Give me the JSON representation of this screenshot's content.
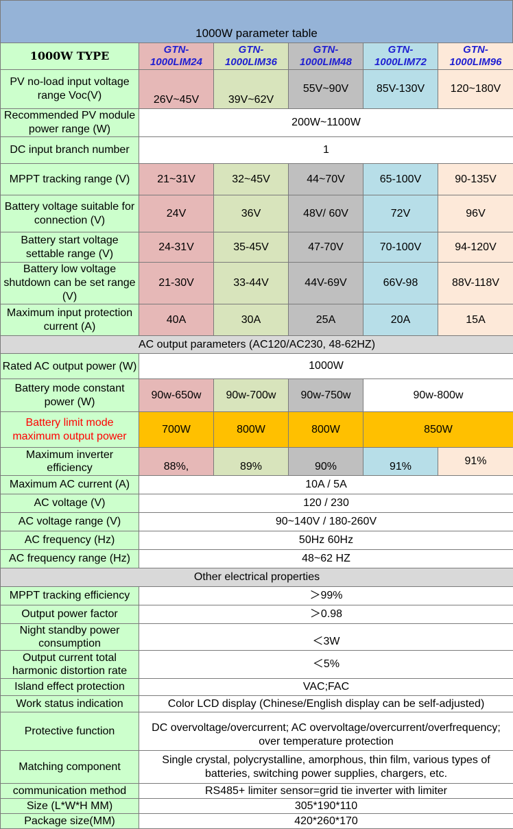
{
  "title": "1000W parameter table",
  "header": {
    "type_label": "1000W  TYPE",
    "models": [
      "GTN-1000LIM24",
      "GTN-1000LIM36",
      "GTN-1000LIM48",
      "GTN-1000LIM72",
      "GTN-1000LIM96"
    ],
    "model_line1": "GTN-",
    "model_line2": [
      "1000LIM24",
      "1000LIM36",
      "1000LIM48",
      "1000LIM72",
      "1000LIM96"
    ]
  },
  "rows": {
    "pv_voc": {
      "label": "PV no-load input voltage range Voc(V)",
      "values": [
        "26V~45V",
        "39V~62V",
        "55V~90V",
        "85V-130V",
        "120~180V"
      ]
    },
    "pv_power": {
      "label": "Recommended PV module power range (W)",
      "value": "200W~1100W"
    },
    "dc_branch": {
      "label": "DC input branch number",
      "value": "1"
    },
    "mppt_range": {
      "label": "MPPT tracking range (V)",
      "values": [
        "21~31V",
        "32~45V",
        "44~70V",
        "65-100V",
        "90-135V"
      ]
    },
    "battery_voltage": {
      "label": "Battery voltage suitable for connection (V)",
      "values": [
        "24V",
        "36V",
        "48V/ 60V",
        "72V",
        "96V"
      ]
    },
    "battery_start": {
      "label": "Battery start voltage settable range (V)",
      "values": [
        "24-31V",
        "35-45V",
        "47-70V",
        "70-100V",
        "94-120V"
      ]
    },
    "battery_low": {
      "label": "Battery low voltage shutdown can be set range (V)",
      "values": [
        "21-30V",
        "33-44V",
        "44V-69V",
        "66V-98",
        "88V-118V"
      ]
    },
    "max_input_current": {
      "label": "Maximum input protection current (A)",
      "values": [
        "40A",
        "30A",
        "25A",
        "20A",
        "15A"
      ]
    },
    "ac_section": "AC output parameters (AC120/AC230, 48-62HZ)",
    "rated_ac_power": {
      "label": "Rated AC output power (W)",
      "value": "1000W"
    },
    "battery_constant": {
      "label": "Battery mode constant power (W)",
      "values": [
        "90w-650w",
        "90w-700w",
        "90w-750w",
        "90w-800w"
      ]
    },
    "battery_limit": {
      "label": "Battery limit mode maximum output power",
      "values": [
        "700W",
        "800W",
        "800W",
        "850W"
      ]
    },
    "inverter_eff": {
      "label": "Maximum inverter efficiency",
      "values": [
        "88%,",
        "89%",
        "90%",
        "91%",
        "91%"
      ]
    },
    "ac_current": {
      "label": "Maximum AC current (A)",
      "value": "10A / 5A"
    },
    "ac_voltage": {
      "label": "AC voltage (V)",
      "value": "120 / 230"
    },
    "ac_voltage_range": {
      "label": "AC voltage range (V)",
      "value": "90~140V / 180-260V"
    },
    "ac_freq": {
      "label": "AC frequency (Hz)",
      "value": "50Hz 60Hz"
    },
    "ac_freq_range": {
      "label": "AC frequency range (Hz)",
      "value": "48~62 HZ"
    },
    "other_section": "Other electrical properties",
    "mppt_eff": {
      "label": "MPPT tracking efficiency",
      "value": "＞99%"
    },
    "power_factor": {
      "label": "Output power factor",
      "value": "＞0.98"
    },
    "standby": {
      "label": "Night standby power consumption",
      "value": "＜3W"
    },
    "thd": {
      "label": "Output current total harmonic distortion rate",
      "value": "＜5%"
    },
    "island": {
      "label": "Island effect protection",
      "value": "VAC;FAC"
    },
    "status": {
      "label": "Work status indication",
      "value": "Color LCD display (Chinese/English display can be self-adjusted)"
    },
    "protective": {
      "label": "Protective function",
      "value": "DC overvoltage/overcurrent; AC overvoltage/overcurrent/overfrequency; over temperature protection"
    },
    "matching": {
      "label": "Matching component",
      "value": "Single crystal, polycrystalline, amorphous, thin film, various types of batteries, switching power supplies, chargers, etc."
    },
    "comm": {
      "label": "communication method",
      "value": "RS485+ limiter sensor=grid tie inverter with limiter"
    },
    "size": {
      "label": "Size (L*W*H MM)",
      "value": "305*190*110"
    },
    "package": {
      "label": "Package size(MM)",
      "value": "420*260*170"
    }
  }
}
